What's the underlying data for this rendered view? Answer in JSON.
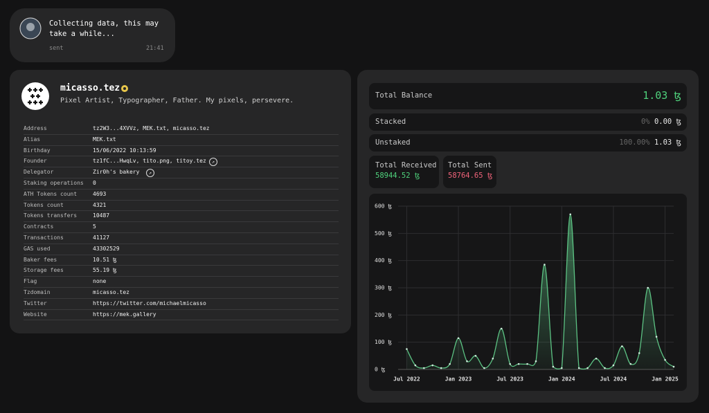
{
  "message": {
    "text": "Collecting data, this may take a while...",
    "status": "sent",
    "time": "21:41"
  },
  "profile": {
    "name": "micasso.tez",
    "bio": "Pixel Artist, Typographer, Father. My pixels, persevere.",
    "details": [
      [
        "Address",
        "tz2W3...4XVVz, MEK.txt, micasso.tez"
      ],
      [
        "Alias",
        "MEK.txt"
      ],
      [
        "Birthday",
        "15/06/2022 10:13:59"
      ],
      [
        "Founder",
        "tz1fC...HwqLv, tito.png, titoy.tez"
      ],
      [
        "Delegator",
        "Zir0h's bakery"
      ],
      [
        "Staking operations",
        "0"
      ],
      [
        "ATH Tokens count",
        "4693"
      ],
      [
        "Tokens count",
        "4321"
      ],
      [
        "Tokens transfers",
        "10487"
      ],
      [
        "Contracts",
        "5"
      ],
      [
        "Transactions",
        "41127"
      ],
      [
        "GAS used",
        "43302529"
      ],
      [
        "Baker fees",
        "10.51 ꜩ"
      ],
      [
        "Storage fees",
        "55.19 ꜩ"
      ],
      [
        "Flag",
        "none"
      ],
      [
        "Tzdomain",
        "micasso.tez"
      ],
      [
        "Twitter",
        "https://twitter.com/michaelmicasso"
      ],
      [
        "Website",
        "https://mek.gallery"
      ]
    ]
  },
  "balance": {
    "total_label": "Total Balance",
    "total": "1.03 ꜩ",
    "staked_label": "Stacked",
    "staked_pct": "0%",
    "staked": "0.00 ꜩ",
    "unstaked_label": "Unstaked",
    "unstaked_pct": "100.00%",
    "unstaked": "1.03 ꜩ",
    "received_label": "Total Received",
    "received": "58944.52 ꜩ",
    "sent_label": "Total Sent",
    "sent": "58764.65 ꜩ"
  },
  "chart_data": {
    "type": "area",
    "color": "#5cc283",
    "grid": true,
    "x": [
      "2022-07",
      "2022-08",
      "2022-09",
      "2022-10",
      "2022-11",
      "2022-12",
      "2023-01",
      "2023-02",
      "2023-03",
      "2023-04",
      "2023-05",
      "2023-06",
      "2023-07",
      "2023-08",
      "2023-09",
      "2023-10",
      "2023-11",
      "2023-12",
      "2024-01",
      "2024-02",
      "2024-03",
      "2024-04",
      "2024-05",
      "2024-06",
      "2024-07",
      "2024-08",
      "2024-09",
      "2024-10",
      "2024-11",
      "2024-12",
      "2025-01",
      "2025-02"
    ],
    "values": [
      75,
      15,
      5,
      15,
      5,
      20,
      115,
      30,
      50,
      5,
      40,
      150,
      20,
      20,
      20,
      30,
      385,
      10,
      5,
      570,
      5,
      5,
      40,
      5,
      15,
      85,
      20,
      60,
      300,
      120,
      35,
      10
    ],
    "xlim": [
      "2022-06",
      "2025-02"
    ],
    "xticks": [
      {
        "value": "2022-07",
        "label": "Jul 2022"
      },
      {
        "value": "2023-01",
        "label": "Jan 2023"
      },
      {
        "value": "2023-07",
        "label": "Jul 2023"
      },
      {
        "value": "2024-01",
        "label": "Jan 2024"
      },
      {
        "value": "2024-07",
        "label": "Jul 2024"
      },
      {
        "value": "2025-01",
        "label": "Jan 2025"
      }
    ],
    "ylim": [
      0,
      600
    ],
    "yticks": [
      {
        "value": 0,
        "label": "0 ꜩ"
      },
      {
        "value": 100,
        "label": "100 ꜩ"
      },
      {
        "value": 200,
        "label": "200 ꜩ"
      },
      {
        "value": 300,
        "label": "300 ꜩ"
      },
      {
        "value": 400,
        "label": "400 ꜩ"
      },
      {
        "value": 500,
        "label": "500 ꜩ"
      },
      {
        "value": 600,
        "label": "600 ꜩ"
      }
    ]
  }
}
